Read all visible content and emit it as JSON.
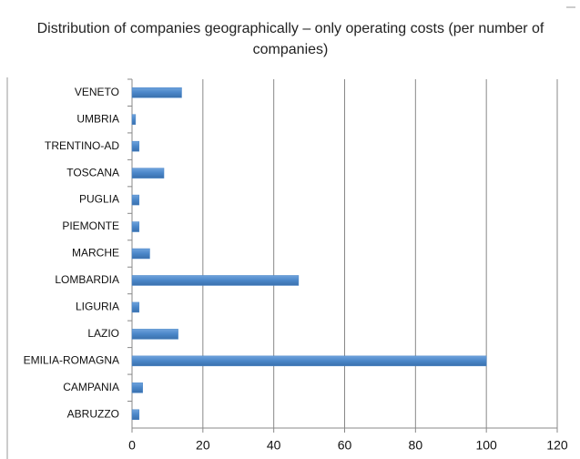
{
  "chart_data": {
    "type": "bar",
    "orientation": "horizontal",
    "title": "Distribution of companies geographically – only operating costs (per number of companies)",
    "categories": [
      "VENETO",
      "UMBRIA",
      "TRENTINO-AD",
      "TOSCANA",
      "PUGLIA",
      "PIEMONTE",
      "MARCHE",
      "LOMBARDIA",
      "LIGURIA",
      "LAZIO",
      "EMILIA-ROMAGNA",
      "CAMPANIA",
      "ABRUZZO"
    ],
    "values": [
      14,
      1,
      2,
      9,
      2,
      2,
      5,
      47,
      2,
      13,
      100,
      3,
      2
    ],
    "color": "#4a86c8",
    "xlim": [
      0,
      120
    ],
    "xticks": [
      0,
      20,
      40,
      60,
      80,
      100,
      120
    ],
    "grid": true
  }
}
